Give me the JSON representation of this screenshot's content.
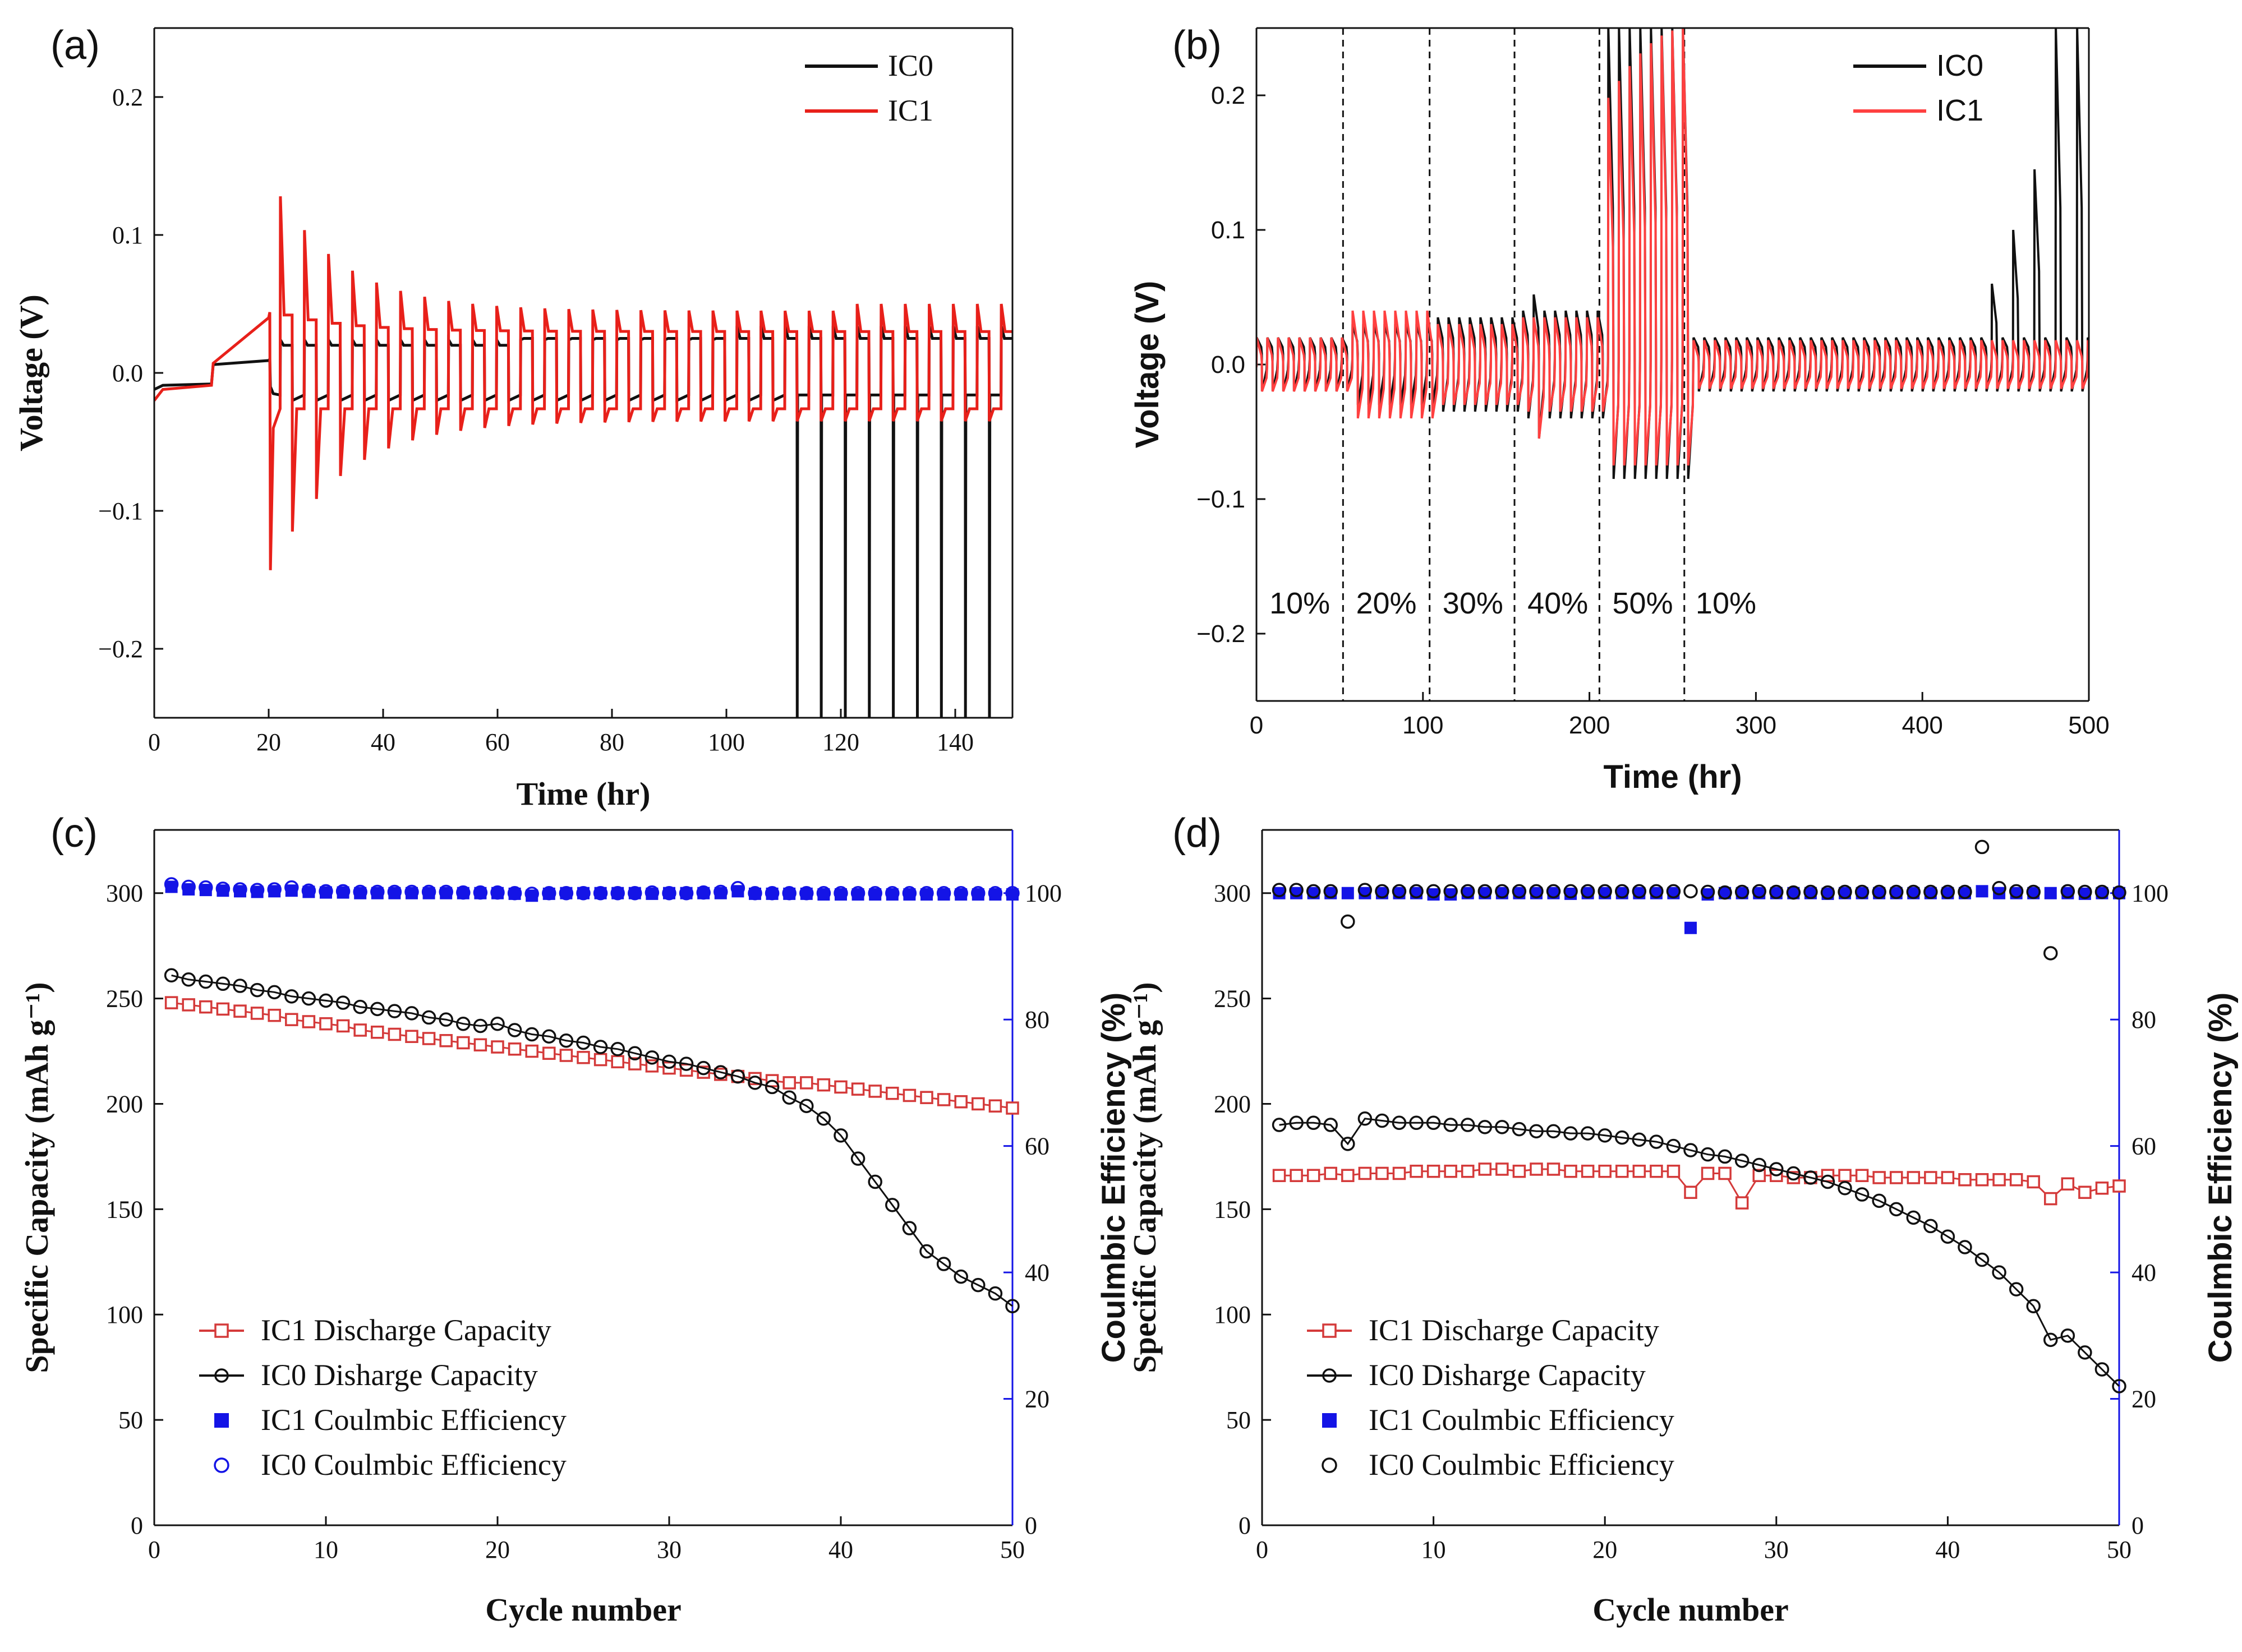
{
  "chart_data": [
    {
      "panel": "(a)",
      "type": "line",
      "title": "",
      "xlabel": "Time (hr)",
      "ylabel": "Voltage (V)",
      "xlim": [
        0,
        150
      ],
      "ylim": [
        -0.25,
        0.25
      ],
      "xticks": [
        0,
        20,
        40,
        60,
        80,
        100,
        120,
        140
      ],
      "yticks": [
        -0.2,
        -0.1,
        0.0,
        0.1,
        0.2
      ],
      "xtick_labels": [
        "0",
        "20",
        "40",
        "60",
        "80",
        "100",
        "120",
        "140"
      ],
      "ytick_labels": [
        "−0.2",
        "−0.1",
        "0.0",
        "0.1",
        "0.2"
      ],
      "legend": [
        {
          "name": "IC0",
          "color": "#111111"
        },
        {
          "name": "IC1",
          "color": "#e8201a"
        }
      ],
      "legend_position": "top-right",
      "series": [
        {
          "name": "IC0",
          "color": "#111111",
          "plateau": 0.02,
          "spike": 0.03,
          "short_start_hr": 108,
          "description_points": [
            [
              0,
              -0.008
            ],
            [
              10,
              -0.007
            ],
            [
              10,
              0.007
            ],
            [
              20,
              0.008
            ],
            [
              108,
              0.03
            ],
            [
              108,
              -0.23
            ],
            [
              150,
              -0.25
            ]
          ]
        },
        {
          "name": "IC1",
          "color": "#e8201a",
          "plateau": 0.03,
          "first_spike": 0.128,
          "first_dip": -0.143,
          "late_spike": 0.052,
          "description_points": [
            [
              0,
              -0.015
            ],
            [
              20,
              0.04
            ],
            [
              20,
              -0.143
            ],
            [
              24,
              0.128
            ],
            [
              30,
              0.098
            ],
            [
              60,
              0.045
            ],
            [
              150,
              0.05
            ]
          ]
        }
      ]
    },
    {
      "panel": "(b)",
      "type": "line",
      "title": "",
      "xlabel": "Time (hr)",
      "ylabel": "Voltage (V)",
      "xlim": [
        0,
        500
      ],
      "ylim": [
        -0.25,
        0.25
      ],
      "xticks": [
        0,
        100,
        200,
        300,
        400,
        500
      ],
      "yticks": [
        -0.2,
        -0.1,
        0.0,
        0.1,
        0.2
      ],
      "xtick_labels": [
        "0",
        "100",
        "200",
        "300",
        "400",
        "500"
      ],
      "ytick_labels": [
        "−0.2",
        "−0.1",
        "0.0",
        "0.1",
        "0.2"
      ],
      "legend": [
        {
          "name": "IC0",
          "color": "#111111"
        },
        {
          "name": "IC1",
          "color": "#ff4040"
        }
      ],
      "legend_position": "top-right",
      "dashed_lines_x": [
        52,
        104,
        155,
        206,
        257
      ],
      "region_labels": [
        {
          "text": "10%",
          "x": 26
        },
        {
          "text": "20%",
          "x": 78
        },
        {
          "text": "30%",
          "x": 130
        },
        {
          "text": "40%",
          "x": 181
        },
        {
          "text": "50%",
          "x": 232
        },
        {
          "text": "10%",
          "x": 282
        }
      ],
      "series": [
        {
          "name": "IC0",
          "color": "#111111",
          "amp_by_region": [
            0.02,
            0.03,
            0.035,
            0.04,
            0.09,
            0.02
          ],
          "late_spikes": [
            [
              440,
              0.06
            ],
            [
              455,
              0.1
            ],
            [
              470,
              0.145
            ],
            [
              478,
              0.25
            ],
            [
              490,
              0.25
            ]
          ]
        },
        {
          "name": "IC1",
          "color": "#ff4040",
          "amp_by_region": [
            0.02,
            0.04,
            0.03,
            0.035,
            0.07,
            0.018
          ]
        }
      ]
    },
    {
      "panel": "(c)",
      "type": "scatter",
      "title": "",
      "xlabel": "Cycle number",
      "ylabel": "Specific Capacity (mAh g⁻¹)",
      "y2label": "Coulmbic Efficiency (%)",
      "xlim": [
        0,
        50
      ],
      "ylim": [
        0,
        330
      ],
      "y2lim": [
        0,
        110
      ],
      "xticks": [
        0,
        10,
        20,
        30,
        40,
        50
      ],
      "yticks": [
        0,
        50,
        100,
        150,
        200,
        250,
        300
      ],
      "y2ticks": [
        0,
        20,
        40,
        60,
        80,
        100
      ],
      "legend": [
        {
          "name": "IC1 Discharge Capacity",
          "color": "#d43a3a",
          "marker": "open-square"
        },
        {
          "name": "IC0 Disharge Capacity",
          "color": "#111111",
          "marker": "open-circle"
        },
        {
          "name": "IC1 Coulmbic Efficiency",
          "color": "#1414e6",
          "marker": "filled-square"
        },
        {
          "name": "IC0 Coulmbic Efficiency",
          "color": "#1414e6",
          "marker": "open-circle"
        }
      ],
      "legend_position": "bottom-left",
      "x": [
        1,
        2,
        3,
        4,
        5,
        6,
        7,
        8,
        9,
        10,
        11,
        12,
        13,
        14,
        15,
        16,
        17,
        18,
        19,
        20,
        21,
        22,
        23,
        24,
        25,
        26,
        27,
        28,
        29,
        30,
        31,
        32,
        33,
        34,
        35,
        36,
        37,
        38,
        39,
        40,
        41,
        42,
        43,
        44,
        45,
        46,
        47,
        48,
        49,
        50
      ],
      "series": [
        {
          "name": "IC1 Discharge Capacity",
          "axis": "left",
          "color": "#d43a3a",
          "marker": "open-square",
          "connect": true,
          "values": [
            248,
            247,
            246,
            245,
            244,
            243,
            242,
            240,
            239,
            238,
            237,
            235,
            234,
            233,
            232,
            231,
            230,
            229,
            228,
            227,
            226,
            225,
            224,
            223,
            222,
            221,
            220,
            219,
            218,
            217,
            216,
            215,
            214,
            213,
            212,
            211,
            210,
            210,
            209,
            208,
            207,
            206,
            205,
            204,
            203,
            202,
            201,
            200,
            199,
            198
          ]
        },
        {
          "name": "IC0 Disharge Capacity",
          "axis": "left",
          "color": "#111111",
          "marker": "open-circle",
          "connect": true,
          "values": [
            261,
            259,
            258,
            257,
            256,
            254,
            253,
            251,
            250,
            249,
            248,
            246,
            245,
            244,
            243,
            241,
            240,
            238,
            237,
            238,
            235,
            233,
            232,
            230,
            229,
            227,
            226,
            224,
            222,
            220,
            219,
            217,
            215,
            213,
            210,
            208,
            203,
            199,
            193,
            185,
            174,
            163,
            152,
            141,
            130,
            124,
            118,
            114,
            110,
            104
          ]
        },
        {
          "name": "IC1 Coulmbic Efficiency",
          "axis": "right",
          "color": "#1414e6",
          "marker": "filled-square",
          "connect": false,
          "values": [
            101,
            100.6,
            100.5,
            100.4,
            100.3,
            100.2,
            100.3,
            100.4,
            100.2,
            100.1,
            100.1,
            100,
            100,
            100,
            100,
            100,
            100,
            100,
            100,
            100,
            99.9,
            99.6,
            99.9,
            100,
            100,
            100,
            100,
            100,
            99.9,
            100,
            100,
            100,
            100,
            100.3,
            99.9,
            99.9,
            99.9,
            99.9,
            99.8,
            99.8,
            99.8,
            99.8,
            99.8,
            99.8,
            99.8,
            99.8,
            99.8,
            99.8,
            99.8,
            99.8
          ]
        },
        {
          "name": "IC0 Coulmbic Efficiency",
          "axis": "right",
          "color": "#1414e6",
          "marker": "open-circle",
          "connect": false,
          "values": [
            101.4,
            101,
            100.9,
            100.7,
            100.6,
            100.5,
            100.6,
            100.9,
            100.4,
            100.3,
            100.3,
            100.2,
            100.2,
            100.2,
            100.2,
            100.2,
            100.2,
            100.1,
            100.1,
            100.1,
            100,
            99.9,
            100,
            100,
            100,
            100,
            100,
            100,
            100.1,
            100,
            100,
            100.1,
            100.2,
            100.8,
            100,
            100,
            100,
            100,
            100,
            100,
            100,
            100,
            100,
            100,
            100,
            100,
            100,
            100,
            100,
            100
          ]
        }
      ]
    },
    {
      "panel": "(d)",
      "type": "scatter",
      "title": "",
      "xlabel": "Cycle number",
      "ylabel": "Specific Capacity (mAh g⁻¹)",
      "y2label": "Coulmbic Efficiency (%)",
      "xlim": [
        0,
        50
      ],
      "ylim": [
        0,
        330
      ],
      "y2lim": [
        0,
        110
      ],
      "xticks": [
        0,
        10,
        20,
        30,
        40,
        50
      ],
      "yticks": [
        0,
        50,
        100,
        150,
        200,
        250,
        300
      ],
      "y2ticks": [
        0,
        20,
        40,
        60,
        80,
        100
      ],
      "legend": [
        {
          "name": "IC1 Discharge Capacity",
          "color": "#d43a3a",
          "marker": "open-square"
        },
        {
          "name": "IC0 Disharge Capacity",
          "color": "#111111",
          "marker": "open-circle"
        },
        {
          "name": "IC1 Coulmbic Efficiency",
          "color": "#1414e6",
          "marker": "filled-square"
        },
        {
          "name": "IC0 Coulmbic Efficiency",
          "color": "#111111",
          "marker": "open-circle"
        }
      ],
      "legend_position": "bottom-left",
      "x": [
        1,
        2,
        3,
        4,
        5,
        6,
        7,
        8,
        9,
        10,
        11,
        12,
        13,
        14,
        15,
        16,
        17,
        18,
        19,
        20,
        21,
        22,
        23,
        24,
        25,
        26,
        27,
        28,
        29,
        30,
        31,
        32,
        33,
        34,
        35,
        36,
        37,
        38,
        39,
        40,
        41,
        42,
        43,
        44,
        45,
        46,
        47,
        48,
        49,
        50
      ],
      "series": [
        {
          "name": "IC1 Discharge Capacity",
          "axis": "left",
          "color": "#d43a3a",
          "marker": "open-square",
          "connect": true,
          "values": [
            166,
            166,
            166,
            167,
            166,
            167,
            167,
            167,
            168,
            168,
            168,
            168,
            169,
            169,
            168,
            169,
            169,
            168,
            168,
            168,
            168,
            168,
            168,
            168,
            158,
            167,
            167,
            153,
            166,
            166,
            165,
            165,
            166,
            166,
            166,
            165,
            165,
            165,
            165,
            165,
            164,
            164,
            164,
            164,
            163,
            155,
            162,
            158,
            160,
            161
          ]
        },
        {
          "name": "IC0 Disharge Capacity",
          "axis": "left",
          "color": "#111111",
          "marker": "open-circle",
          "connect": true,
          "values": [
            190,
            191,
            191,
            190,
            181,
            193,
            192,
            191,
            191,
            191,
            190,
            190,
            189,
            189,
            188,
            187,
            187,
            186,
            186,
            185,
            184,
            183,
            182,
            180,
            178,
            176,
            175,
            173,
            171,
            169,
            167,
            165,
            163,
            160,
            157,
            154,
            150,
            146,
            142,
            137,
            132,
            126,
            120,
            112,
            104,
            88,
            90,
            82,
            74,
            66
          ]
        },
        {
          "name": "IC1 Coulmbic Efficiency",
          "axis": "right",
          "color": "#1414e6",
          "marker": "filled-square",
          "connect": false,
          "values": [
            100,
            100,
            100,
            100,
            100,
            100,
            100,
            100,
            100,
            99.8,
            99.8,
            100,
            100,
            100,
            100,
            100,
            100,
            99.9,
            100,
            100,
            100,
            100,
            100,
            100,
            94.5,
            99.8,
            100,
            100,
            100,
            100,
            100,
            100,
            99.9,
            100,
            100,
            100,
            100,
            100,
            100,
            100,
            100,
            100.3,
            100,
            100,
            100,
            100,
            100,
            99.9,
            100,
            100
          ]
        },
        {
          "name": "IC0 Coulmbic Efficiency",
          "axis": "right",
          "color": "#111111",
          "marker": "open-circle",
          "connect": false,
          "values": [
            100.5,
            100.5,
            100.3,
            100.3,
            95.5,
            100.5,
            100.3,
            100.3,
            100.3,
            100.3,
            100.3,
            100.3,
            100.3,
            100.3,
            100.3,
            100.3,
            100.3,
            100.3,
            100.3,
            100.3,
            100.3,
            100.3,
            100.3,
            100.3,
            100.3,
            100.2,
            100.1,
            100.2,
            100.3,
            100.2,
            100.1,
            100.2,
            100.1,
            100.2,
            100.2,
            100.2,
            100.2,
            100.2,
            100.2,
            100.2,
            100.2,
            107.3,
            100.8,
            100.3,
            100.2,
            90.5,
            100.3,
            100.2,
            100.2,
            100.1
          ]
        }
      ]
    }
  ]
}
